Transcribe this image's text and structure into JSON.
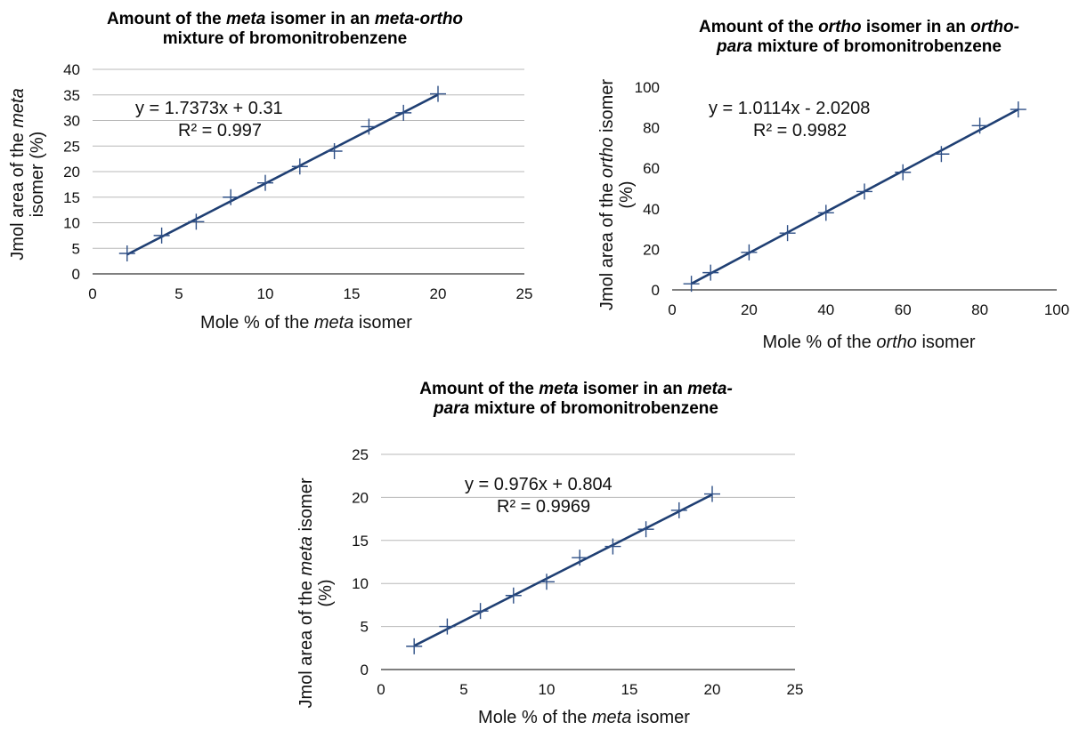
{
  "chart_data": [
    {
      "type": "scatter",
      "title_parts": [
        {
          "text": "Amount of the "
        },
        {
          "text": "meta",
          "italic": true
        },
        {
          "text": " isomer in an "
        },
        {
          "text": "meta-ortho",
          "italic": true
        },
        {
          "br": true
        },
        {
          "text": "mixture of bromonitrobenzene"
        }
      ],
      "xlabel_parts": [
        {
          "text": "Mole % of the "
        },
        {
          "text": "meta",
          "italic": true
        },
        {
          "text": " isomer"
        }
      ],
      "ylabel_parts": [
        {
          "text": "Jmol area of the "
        },
        {
          "text": "meta",
          "italic": true
        },
        {
          "br": true
        },
        {
          "text": "isomer (%)"
        }
      ],
      "xlim": [
        0,
        25
      ],
      "ylim": [
        0,
        40
      ],
      "xticks": [
        0,
        5,
        10,
        15,
        20,
        25
      ],
      "yticks": [
        0,
        5,
        10,
        15,
        20,
        25,
        30,
        35,
        40
      ],
      "grid": true,
      "series": [
        {
          "x": [
            2,
            4,
            6,
            8,
            10,
            12,
            14,
            16,
            18,
            20
          ],
          "y": [
            4,
            7.5,
            10.2,
            15,
            17.8,
            21,
            24,
            28.8,
            31.5,
            35.2
          ]
        }
      ],
      "trendline": {
        "slope": 1.7373,
        "intercept": 0.31,
        "x_range": [
          2,
          20
        ]
      },
      "equation": "y = 1.7373x + 0.31",
      "r2": "R² = 0.997",
      "color": "#1f3f73"
    },
    {
      "type": "scatter",
      "title_parts": [
        {
          "text": "Amount of the "
        },
        {
          "text": "ortho",
          "italic": true
        },
        {
          "text": " isomer in an "
        },
        {
          "text": "ortho-",
          "italic": true
        },
        {
          "br": true
        },
        {
          "text": "para",
          "italic": true
        },
        {
          "text": " mixture of bromonitrobenzene"
        }
      ],
      "xlabel_parts": [
        {
          "text": "Mole % of the "
        },
        {
          "text": "ortho",
          "italic": true
        },
        {
          "text": " isomer"
        }
      ],
      "ylabel_parts": [
        {
          "text": "Jmol area of the "
        },
        {
          "text": "ortho",
          "italic": true
        },
        {
          "text": " isomer"
        },
        {
          "br": true
        },
        {
          "text": "(%)"
        }
      ],
      "xlim": [
        0,
        100
      ],
      "ylim": [
        0,
        100
      ],
      "xticks": [
        0,
        20,
        40,
        60,
        80,
        100
      ],
      "yticks": [
        0,
        20,
        40,
        60,
        80,
        100
      ],
      "grid": false,
      "series": [
        {
          "x": [
            5,
            10,
            20,
            30,
            40,
            50,
            60,
            70,
            80,
            90
          ],
          "y": [
            3,
            8.5,
            18.5,
            28,
            38,
            48.5,
            58,
            67,
            81,
            89
          ]
        }
      ],
      "trendline": {
        "slope": 1.0114,
        "intercept": -2.0208,
        "x_range": [
          5,
          90
        ]
      },
      "equation": "y = 1.0114x - 2.0208",
      "r2": "R² = 0.9982",
      "color": "#1f3f73"
    },
    {
      "type": "scatter",
      "title_parts": [
        {
          "text": "Amount of the "
        },
        {
          "text": "meta",
          "italic": true
        },
        {
          "text": " isomer in an "
        },
        {
          "text": "meta-",
          "italic": true
        },
        {
          "br": true
        },
        {
          "text": "para",
          "italic": true
        },
        {
          "text": " mixture of bromonitrobenzene"
        }
      ],
      "xlabel_parts": [
        {
          "text": "Mole % of the "
        },
        {
          "text": "meta",
          "italic": true
        },
        {
          "text": " isomer"
        }
      ],
      "ylabel_parts": [
        {
          "text": "Jmol area of the "
        },
        {
          "text": "meta",
          "italic": true
        },
        {
          "text": " isomer"
        },
        {
          "br": true
        },
        {
          "text": "(%)"
        }
      ],
      "xlim": [
        0,
        25
      ],
      "ylim": [
        0,
        25
      ],
      "xticks": [
        0,
        5,
        10,
        15,
        20,
        25
      ],
      "yticks": [
        0,
        5,
        10,
        15,
        20,
        25
      ],
      "grid": true,
      "series": [
        {
          "x": [
            2,
            4,
            6,
            8,
            10,
            12,
            14,
            16,
            18,
            20
          ],
          "y": [
            2.7,
            5,
            6.8,
            8.6,
            10.2,
            13,
            14.3,
            16.3,
            18.5,
            20.4
          ]
        }
      ],
      "trendline": {
        "slope": 0.976,
        "intercept": 0.804,
        "x_range": [
          2,
          20
        ]
      },
      "equation": "y = 0.976x + 0.804",
      "r2": "R² = 0.9969",
      "color": "#1f3f73"
    }
  ]
}
